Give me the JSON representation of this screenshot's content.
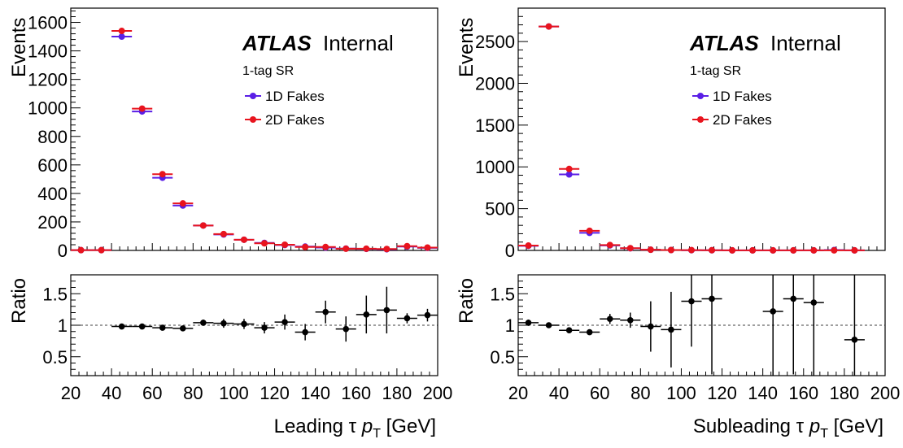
{
  "chart_data": [
    {
      "type": "scatter",
      "panel": "left",
      "label_atlas": "ATLAS",
      "label_internal": "Internal",
      "region": "1-tag SR",
      "xlabel_main": "Leading τ ",
      "xlabel_p": "p",
      "xlabel_sub": "T",
      "xlabel_unit": " [GeV]",
      "ylabel_top": "Events",
      "ylabel_bottom": "Ratio",
      "xlim": [
        20,
        200
      ],
      "ylim_top": [
        0,
        1700
      ],
      "ylim_bottom": [
        0.2,
        1.8
      ],
      "x_ticks": [
        "20",
        "40",
        "60",
        "80",
        "100",
        "120",
        "140",
        "160",
        "180",
        "200"
      ],
      "y_ticks_top": [
        "0",
        "200",
        "400",
        "600",
        "800",
        "1000",
        "1200",
        "1400",
        "1600"
      ],
      "y_ticks_bottom": [
        "0.5",
        "1",
        "1.5"
      ],
      "x": [
        25,
        35,
        45,
        55,
        65,
        75,
        85,
        95,
        105,
        115,
        125,
        135,
        145,
        155,
        165,
        175,
        185,
        195
      ],
      "series": [
        {
          "name": "1D Fakes",
          "color": "#5a1ee6",
          "values": [
            2,
            2,
            1500,
            975,
            510,
            315,
            175,
            112,
            75,
            53,
            38,
            27,
            20,
            13,
            11,
            8,
            27,
            18
          ]
        },
        {
          "name": "2D Fakes",
          "color": "#e8141e",
          "values": [
            2,
            2,
            1540,
            995,
            535,
            330,
            175,
            115,
            75,
            50,
            40,
            24,
            24,
            12,
            12,
            10,
            30,
            20
          ]
        }
      ],
      "ratio": {
        "x": [
          45,
          55,
          65,
          75,
          85,
          95,
          105,
          115,
          125,
          135,
          145,
          155,
          165,
          175,
          185,
          195
        ],
        "values": [
          0.98,
          0.98,
          0.96,
          0.95,
          1.04,
          1.03,
          1.02,
          0.96,
          1.05,
          0.89,
          1.21,
          0.94,
          1.17,
          1.24,
          1.11,
          1.16
        ],
        "err": [
          0.01,
          0.02,
          0.02,
          0.03,
          0.05,
          0.07,
          0.08,
          0.09,
          0.12,
          0.13,
          0.18,
          0.2,
          0.3,
          0.37,
          0.08,
          0.1
        ]
      }
    },
    {
      "type": "scatter",
      "panel": "right",
      "label_atlas": "ATLAS",
      "label_internal": "Internal",
      "region": "1-tag SR",
      "xlabel_main": "Subleading τ ",
      "xlabel_p": "p",
      "xlabel_sub": "T",
      "xlabel_unit": " [GeV]",
      "ylabel_top": "Events",
      "ylabel_bottom": "Ratio",
      "xlim": [
        20,
        200
      ],
      "ylim_top": [
        0,
        2900
      ],
      "ylim_bottom": [
        0.2,
        1.8
      ],
      "x_ticks": [
        "20",
        "40",
        "60",
        "80",
        "100",
        "120",
        "140",
        "160",
        "180",
        "200"
      ],
      "y_ticks_top": [
        "0",
        "500",
        "1000",
        "1500",
        "2000",
        "2500"
      ],
      "y_ticks_bottom": [
        "0.5",
        "1",
        "1.5"
      ],
      "x": [
        25,
        35,
        45,
        55,
        65,
        75,
        85,
        95,
        105,
        115,
        125,
        135,
        145,
        155,
        165,
        175,
        185
      ],
      "series": [
        {
          "name": "1D Fakes",
          "color": "#5a1ee6",
          "values": [
            55,
            2680,
            910,
            210,
            60,
            25,
            8,
            5,
            3,
            2,
            1,
            1,
            1,
            1,
            1,
            5,
            1
          ]
        },
        {
          "name": "2D Fakes",
          "color": "#e8141e",
          "values": [
            58,
            2680,
            975,
            235,
            65,
            27,
            8,
            5,
            4,
            3,
            1,
            1,
            1,
            1,
            1,
            1,
            1
          ]
        }
      ],
      "ratio": {
        "x": [
          25,
          35,
          45,
          55,
          65,
          75,
          85,
          95,
          105,
          115,
          145,
          155,
          165,
          185
        ],
        "values": [
          1.04,
          1.0,
          0.92,
          0.89,
          1.1,
          1.08,
          0.98,
          0.93,
          1.38,
          1.42,
          1.22,
          1.42,
          1.36,
          0.77
        ],
        "err": [
          0.05,
          0.01,
          0.02,
          0.04,
          0.08,
          0.12,
          0.4,
          0.6,
          0.72,
          1.2,
          1.2,
          1.2,
          1.2,
          1.2
        ]
      }
    }
  ]
}
